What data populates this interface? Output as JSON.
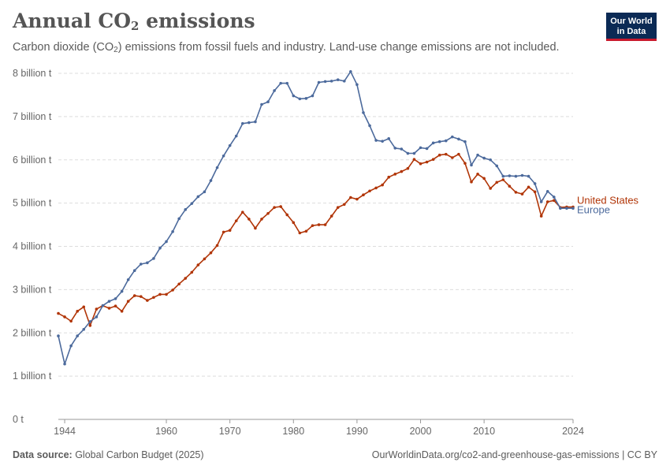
{
  "header": {
    "title_main": "Annual CO",
    "title_sub": "2",
    "title_tail": " emissions",
    "subtitle_a": "Carbon dioxide (CO",
    "subtitle_sub": "2",
    "subtitle_b": ") emissions from fossil fuels and industry. Land-use change emissions are not included."
  },
  "logo": {
    "line1": "Our World",
    "line2": "in Data"
  },
  "footer": {
    "source_label": "Data source:",
    "source_value": " Global Carbon Budget (2025)",
    "url": "OurWorldinData.org/co2-and-greenhouse-gas-emissions | CC BY"
  },
  "chart_data": {
    "type": "line",
    "xlim": [
      1943,
      2024
    ],
    "ylim": [
      0,
      8000000000
    ],
    "x_ticks": [
      1944,
      1960,
      1970,
      1980,
      1990,
      2000,
      2010,
      2024
    ],
    "y_ticks": [
      0,
      1000000000,
      2000000000,
      3000000000,
      4000000000,
      5000000000,
      6000000000,
      7000000000,
      8000000000
    ],
    "y_tick_labels": [
      "0 t",
      "1 billion t",
      "2 billion t",
      "3 billion t",
      "4 billion t",
      "5 billion t",
      "6 billion t",
      "7 billion t",
      "8 billion t"
    ],
    "grid": "horizontal dashed",
    "legend": "right end of lines",
    "series": [
      {
        "name": "United States",
        "color": "#b13507",
        "x": [
          1943,
          1944,
          1945,
          1946,
          1947,
          1948,
          1949,
          1950,
          1951,
          1952,
          1953,
          1954,
          1955,
          1956,
          1957,
          1958,
          1959,
          1960,
          1961,
          1962,
          1963,
          1964,
          1965,
          1966,
          1967,
          1968,
          1969,
          1970,
          1971,
          1972,
          1973,
          1974,
          1975,
          1976,
          1977,
          1978,
          1979,
          1980,
          1981,
          1982,
          1983,
          1984,
          1985,
          1986,
          1987,
          1988,
          1989,
          1990,
          1991,
          1992,
          1993,
          1994,
          1995,
          1996,
          1997,
          1998,
          1999,
          2000,
          2001,
          2002,
          2003,
          2004,
          2005,
          2006,
          2007,
          2008,
          2009,
          2010,
          2011,
          2012,
          2013,
          2014,
          2015,
          2016,
          2017,
          2018,
          2019,
          2020,
          2021,
          2022,
          2023,
          2024
        ],
        "values": [
          2450000000.0,
          2370000000.0,
          2270000000.0,
          2500000000.0,
          2600000000.0,
          2170000000.0,
          2550000000.0,
          2630000000.0,
          2570000000.0,
          2620000000.0,
          2500000000.0,
          2730000000.0,
          2860000000.0,
          2840000000.0,
          2750000000.0,
          2820000000.0,
          2890000000.0,
          2890000000.0,
          2990000000.0,
          3130000000.0,
          3260000000.0,
          3400000000.0,
          3570000000.0,
          3710000000.0,
          3850000000.0,
          4020000000.0,
          4330000000.0,
          4370000000.0,
          4590000000.0,
          4790000000.0,
          4630000000.0,
          4420000000.0,
          4630000000.0,
          4760000000.0,
          4900000000.0,
          4920000000.0,
          4730000000.0,
          4550000000.0,
          4310000000.0,
          4350000000.0,
          4480000000.0,
          4500000000.0,
          4500000000.0,
          4700000000.0,
          4900000000.0,
          4970000000.0,
          5130000000.0,
          5090000000.0,
          5190000000.0,
          5280000000.0,
          5350000000.0,
          5420000000.0,
          5600000000.0,
          5670000000.0,
          5730000000.0,
          5800000000.0,
          6010000000.0,
          5910000000.0,
          5950000000.0,
          6010000000.0,
          6110000000.0,
          6130000000.0,
          6050000000.0,
          6130000000.0,
          5920000000.0,
          5490000000.0,
          5670000000.0,
          5570000000.0,
          5340000000.0,
          5480000000.0,
          5540000000.0,
          5390000000.0,
          5250000000.0,
          5210000000.0,
          5370000000.0,
          5260000000.0,
          4700000000.0,
          5030000000.0,
          5060000000.0,
          4900000000.0,
          4910000000.0,
          4910000000.0
        ]
      },
      {
        "name": "Europe",
        "color": "#4c6a9c",
        "x": [
          1943,
          1944,
          1945,
          1946,
          1947,
          1948,
          1949,
          1950,
          1951,
          1952,
          1953,
          1954,
          1955,
          1956,
          1957,
          1958,
          1959,
          1960,
          1961,
          1962,
          1963,
          1964,
          1965,
          1966,
          1967,
          1968,
          1969,
          1970,
          1971,
          1972,
          1973,
          1974,
          1975,
          1976,
          1977,
          1978,
          1979,
          1980,
          1981,
          1982,
          1983,
          1984,
          1985,
          1986,
          1987,
          1988,
          1989,
          1990,
          1991,
          1992,
          1993,
          1994,
          1995,
          1996,
          1997,
          1998,
          1999,
          2000,
          2001,
          2002,
          2003,
          2004,
          2005,
          2006,
          2007,
          2008,
          2009,
          2010,
          2011,
          2012,
          2013,
          2014,
          2015,
          2016,
          2017,
          2018,
          2019,
          2020,
          2021,
          2022,
          2023,
          2024
        ],
        "values": [
          1930000000.0,
          1280000000.0,
          1700000000.0,
          1930000000.0,
          2080000000.0,
          2260000000.0,
          2370000000.0,
          2630000000.0,
          2730000000.0,
          2790000000.0,
          2960000000.0,
          3230000000.0,
          3440000000.0,
          3590000000.0,
          3620000000.0,
          3720000000.0,
          3960000000.0,
          4110000000.0,
          4340000000.0,
          4640000000.0,
          4850000000.0,
          4990000000.0,
          5150000000.0,
          5260000000.0,
          5520000000.0,
          5820000000.0,
          6090000000.0,
          6330000000.0,
          6550000000.0,
          6840000000.0,
          6860000000.0,
          6880000000.0,
          7280000000.0,
          7340000000.0,
          7600000000.0,
          7770000000.0,
          7770000000.0,
          7480000000.0,
          7410000000.0,
          7420000000.0,
          7480000000.0,
          7790000000.0,
          7810000000.0,
          7820000000.0,
          7850000000.0,
          7820000000.0,
          8040000000.0,
          7740000000.0,
          7090000000.0,
          6790000000.0,
          6450000000.0,
          6430000000.0,
          6490000000.0,
          6270000000.0,
          6250000000.0,
          6150000000.0,
          6150000000.0,
          6280000000.0,
          6260000000.0,
          6390000000.0,
          6420000000.0,
          6440000000.0,
          6530000000.0,
          6480000000.0,
          6420000000.0,
          5880000000.0,
          6110000000.0,
          6040000000.0,
          6000000000.0,
          5860000000.0,
          5620000000.0,
          5630000000.0,
          5620000000.0,
          5640000000.0,
          5620000000.0,
          5450000000.0,
          5030000000.0,
          5270000000.0,
          5140000000.0,
          4880000000.0,
          4880000000.0,
          4880000000.0
        ]
      }
    ]
  }
}
